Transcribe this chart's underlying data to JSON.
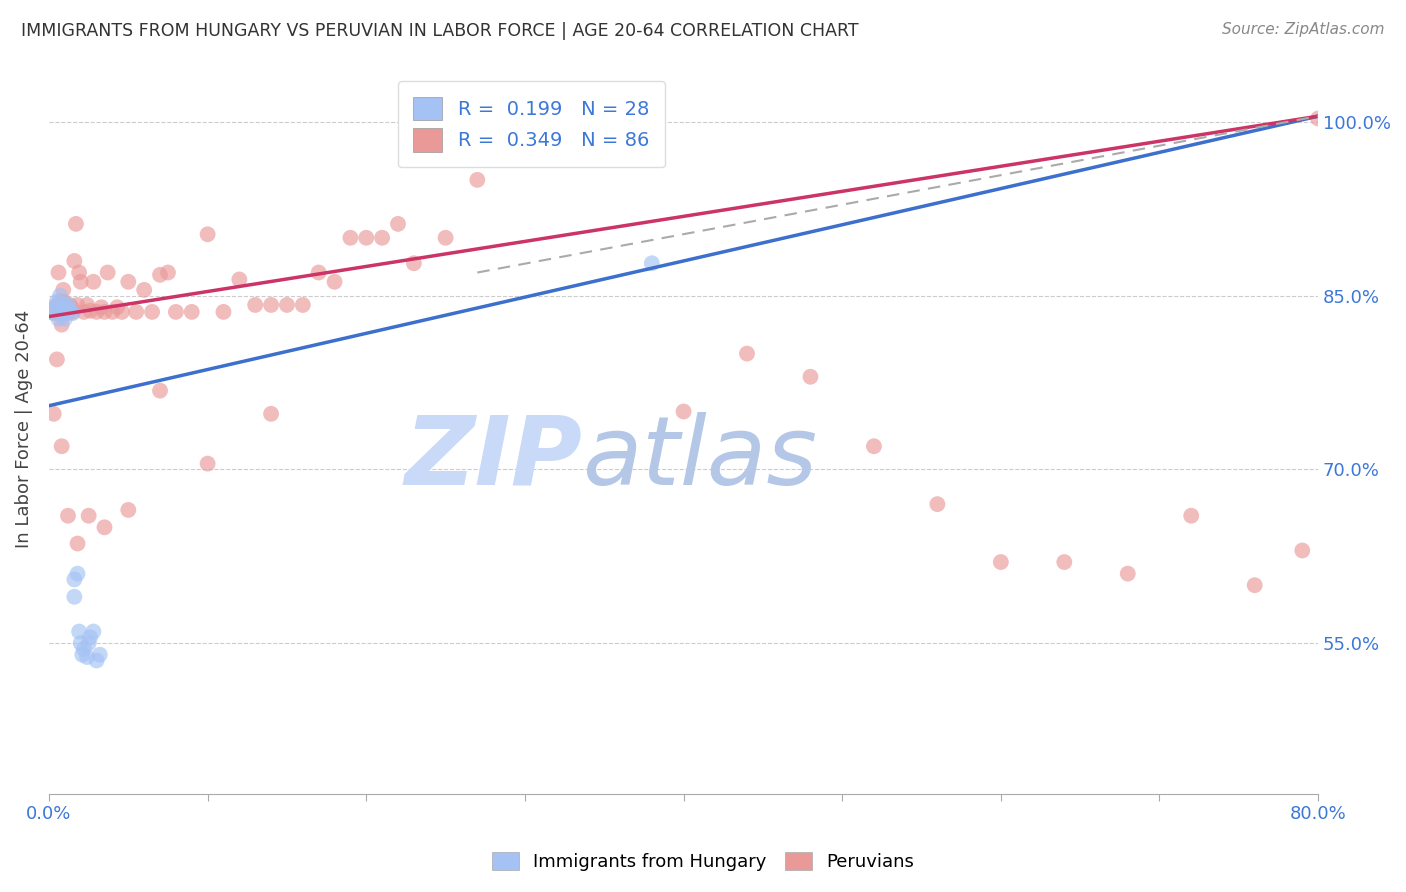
{
  "title": "IMMIGRANTS FROM HUNGARY VS PERUVIAN IN LABOR FORCE | AGE 20-64 CORRELATION CHART",
  "source": "Source: ZipAtlas.com",
  "ylabel": "In Labor Force | Age 20-64",
  "xlim": [
    0.0,
    0.8
  ],
  "ylim": [
    0.42,
    1.05
  ],
  "y_tick_labels": [
    "55.0%",
    "70.0%",
    "85.0%",
    "100.0%"
  ],
  "y_tick_values": [
    0.55,
    0.7,
    0.85,
    1.0
  ],
  "legend_blue_R": "0.199",
  "legend_blue_N": "28",
  "legend_pink_R": "0.349",
  "legend_pink_N": "86",
  "blue_color": "#a4c2f4",
  "pink_color": "#ea9999",
  "blue_line_color": "#3d6fcc",
  "pink_line_color": "#cc3366",
  "gray_line_color": "#aaaaaa",
  "watermark_zip": "ZIP",
  "watermark_atlas": "atlas",
  "watermark_color": "#c9daf8",
  "watermark_atlas_color": "#b4c7e7",
  "blue_line_x0": 0.0,
  "blue_line_y0": 0.755,
  "blue_line_x1": 0.8,
  "blue_line_y1": 1.005,
  "pink_line_x0": 0.0,
  "pink_line_y0": 0.832,
  "pink_line_x1": 0.8,
  "pink_line_y1": 1.005,
  "gray_line_x0": 0.27,
  "gray_line_y0": 0.87,
  "gray_line_x1": 0.8,
  "gray_line_y1": 1.005,
  "blue_scatter_x": [
    0.003,
    0.004,
    0.005,
    0.005,
    0.006,
    0.007,
    0.008,
    0.009,
    0.01,
    0.01,
    0.011,
    0.012,
    0.013,
    0.015,
    0.016,
    0.016,
    0.018,
    0.019,
    0.02,
    0.021,
    0.022,
    0.024,
    0.025,
    0.026,
    0.028,
    0.03,
    0.032,
    0.38
  ],
  "blue_scatter_y": [
    0.835,
    0.84,
    0.838,
    0.845,
    0.83,
    0.85,
    0.835,
    0.838,
    0.83,
    0.842,
    0.835,
    0.842,
    0.838,
    0.835,
    0.59,
    0.605,
    0.61,
    0.56,
    0.55,
    0.54,
    0.545,
    0.538,
    0.55,
    0.555,
    0.56,
    0.535,
    0.54,
    0.878
  ],
  "pink_scatter_x": [
    0.003,
    0.004,
    0.005,
    0.005,
    0.006,
    0.007,
    0.007,
    0.008,
    0.008,
    0.009,
    0.009,
    0.01,
    0.01,
    0.01,
    0.011,
    0.011,
    0.012,
    0.013,
    0.014,
    0.015,
    0.016,
    0.017,
    0.018,
    0.019,
    0.02,
    0.022,
    0.024,
    0.026,
    0.028,
    0.03,
    0.033,
    0.035,
    0.037,
    0.04,
    0.043,
    0.046,
    0.05,
    0.055,
    0.06,
    0.065,
    0.07,
    0.075,
    0.08,
    0.09,
    0.1,
    0.11,
    0.12,
    0.13,
    0.14,
    0.15,
    0.16,
    0.17,
    0.18,
    0.19,
    0.2,
    0.21,
    0.22,
    0.23,
    0.25,
    0.27,
    0.3,
    0.33,
    0.36,
    0.4,
    0.44,
    0.48,
    0.52,
    0.56,
    0.6,
    0.64,
    0.68,
    0.72,
    0.76,
    0.79,
    0.003,
    0.005,
    0.008,
    0.012,
    0.018,
    0.025,
    0.035,
    0.05,
    0.07,
    0.1,
    0.14,
    0.8
  ],
  "pink_scatter_y": [
    0.835,
    0.84,
    0.835,
    0.842,
    0.87,
    0.835,
    0.845,
    0.838,
    0.825,
    0.845,
    0.855,
    0.835,
    0.842,
    0.836,
    0.84,
    0.838,
    0.835,
    0.842,
    0.84,
    0.836,
    0.88,
    0.912,
    0.842,
    0.87,
    0.862,
    0.836,
    0.842,
    0.837,
    0.862,
    0.836,
    0.84,
    0.836,
    0.87,
    0.836,
    0.84,
    0.836,
    0.862,
    0.836,
    0.855,
    0.836,
    0.868,
    0.87,
    0.836,
    0.836,
    0.903,
    0.836,
    0.864,
    0.842,
    0.842,
    0.842,
    0.842,
    0.87,
    0.862,
    0.9,
    0.9,
    0.9,
    0.912,
    0.878,
    0.9,
    0.95,
    0.97,
    0.98,
    1.0,
    0.75,
    0.8,
    0.78,
    0.72,
    0.67,
    0.62,
    0.62,
    0.61,
    0.66,
    0.6,
    0.63,
    0.748,
    0.795,
    0.72,
    0.66,
    0.636,
    0.66,
    0.65,
    0.665,
    0.768,
    0.705,
    0.748,
    1.003
  ]
}
